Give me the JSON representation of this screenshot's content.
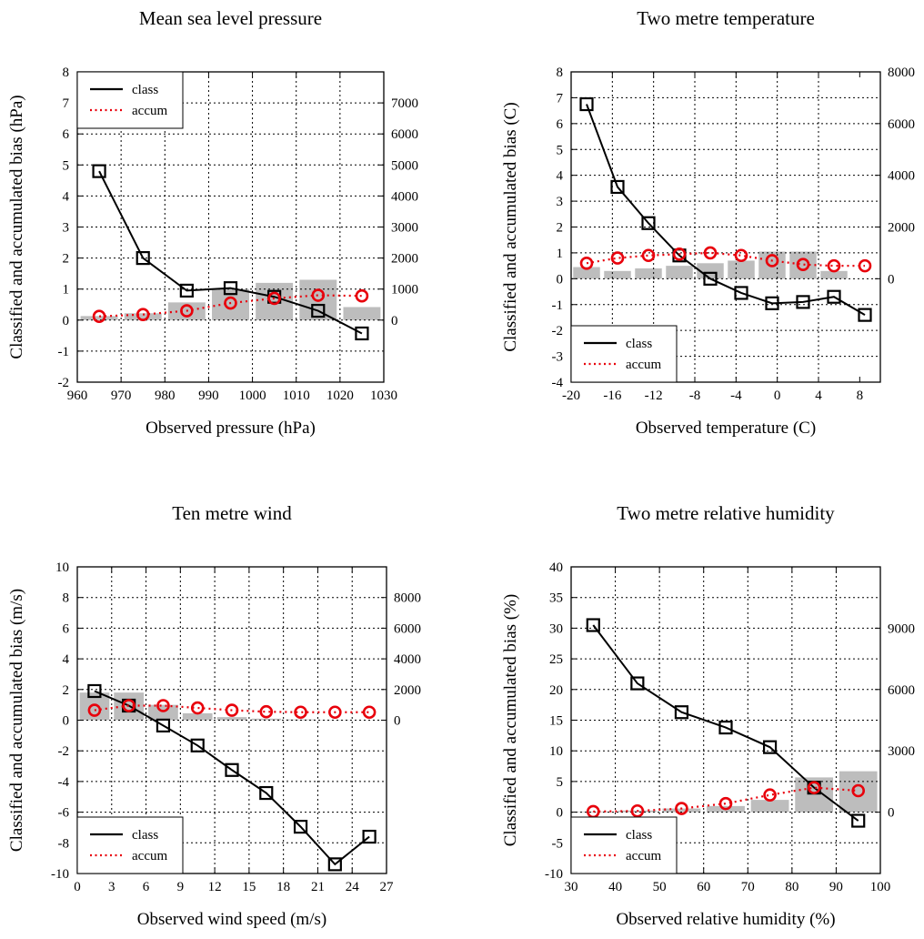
{
  "chart_data": [
    {
      "type": "line",
      "title": "Mean sea level pressure",
      "xlabel": "Observed pressure (hPa)",
      "ylabel": "Classified and accumulated bias (hPa)",
      "xlim": [
        960,
        1030
      ],
      "ylim": [
        -2,
        8
      ],
      "y2lim": [
        -2000,
        8000
      ],
      "xticks": [
        "960",
        "970",
        "980",
        "990",
        "1000",
        "1010",
        "1020",
        "1030"
      ],
      "yticks": [
        "-2",
        "-1",
        "0",
        "1",
        "2",
        "3",
        "4",
        "5",
        "6",
        "7",
        "8"
      ],
      "y2ticks": [
        "0",
        "1000",
        "2000",
        "3000",
        "4000",
        "5000",
        "6000",
        "7000"
      ],
      "legend_position": "top-left",
      "grid": true,
      "x": [
        965,
        975,
        985,
        995,
        1005,
        1015,
        1025
      ],
      "bar_width": 8.5,
      "series": [
        {
          "name": "class",
          "style": "solid",
          "marker": "square",
          "color": "#000000",
          "values": [
            4.8,
            2.0,
            0.95,
            1.03,
            0.75,
            0.3,
            -0.43
          ]
        },
        {
          "name": "accum",
          "style": "dotted",
          "marker": "circle",
          "color": "#e8000b",
          "values": [
            0.12,
            0.18,
            0.3,
            0.55,
            0.7,
            0.8,
            0.78
          ]
        },
        {
          "name": "",
          "type": "bar",
          "axis": "y2",
          "color": "#bdbdbd",
          "values": [
            130,
            220,
            570,
            1000,
            1200,
            1300,
            420
          ]
        }
      ]
    },
    {
      "type": "line",
      "title": "Two metre temperature",
      "xlabel": "Observed temperature (C)",
      "ylabel": "Classified and accumulated bias (C)",
      "xlim": [
        -20,
        10
      ],
      "ylim": [
        -4,
        8
      ],
      "y2lim": [
        -4000,
        8000
      ],
      "xticks": [
        "-20",
        "-16",
        "-12",
        "-8",
        "-4",
        "0",
        "4",
        "8"
      ],
      "yticks": [
        "-4",
        "-3",
        "-2",
        "-1",
        "0",
        "1",
        "2",
        "3",
        "4",
        "5",
        "6",
        "7",
        "8"
      ],
      "y2ticks": [
        "0",
        "2000",
        "4000",
        "6000",
        "8000"
      ],
      "legend_position": "bottom-left",
      "grid": true,
      "x": [
        -18.5,
        -15.5,
        -12.5,
        -9.5,
        -6.5,
        -3.5,
        -0.5,
        2.5,
        5.5,
        8.5
      ],
      "bar_width": 2.6,
      "series": [
        {
          "name": "class",
          "style": "solid",
          "marker": "square",
          "color": "#000000",
          "values": [
            6.75,
            3.55,
            2.15,
            0.9,
            0.0,
            -0.55,
            -0.95,
            -0.9,
            -0.7,
            -1.4
          ]
        },
        {
          "name": "accum",
          "style": "dotted",
          "marker": "circle",
          "color": "#e8000b",
          "values": [
            0.6,
            0.8,
            0.9,
            0.95,
            1.0,
            0.9,
            0.7,
            0.55,
            0.5,
            0.5
          ]
        },
        {
          "name": "",
          "type": "bar",
          "axis": "y2",
          "color": "#bdbdbd",
          "values": [
            450,
            300,
            400,
            500,
            600,
            700,
            1050,
            1050,
            300,
            0
          ]
        }
      ]
    },
    {
      "type": "line",
      "title": "Ten metre wind",
      "xlabel": "Observed wind speed (m/s)",
      "ylabel": "Classified and accumulated bias (m/s)",
      "xlim": [
        0,
        27
      ],
      "ylim": [
        -10,
        10
      ],
      "y2lim": [
        -10000,
        10000
      ],
      "xticks": [
        "0",
        "3",
        "6",
        "9",
        "12",
        "15",
        "18",
        "21",
        "24",
        "27"
      ],
      "yticks": [
        "-10",
        "-8",
        "-6",
        "-4",
        "-2",
        "0",
        "2",
        "4",
        "6",
        "8",
        "10"
      ],
      "y2ticks": [
        "0",
        "2000",
        "4000",
        "6000",
        "8000"
      ],
      "legend_position": "bottom-left",
      "grid": true,
      "x": [
        1.5,
        4.5,
        7.5,
        10.5,
        13.5,
        16.5,
        19.5,
        22.5,
        25.5
      ],
      "bar_width": 2.6,
      "series": [
        {
          "name": "class",
          "style": "solid",
          "marker": "square",
          "color": "#000000",
          "values": [
            1.9,
            0.95,
            -0.35,
            -1.65,
            -3.25,
            -4.75,
            -6.95,
            -9.4,
            -7.6
          ]
        },
        {
          "name": "accum",
          "style": "dotted",
          "marker": "circle",
          "color": "#e8000b",
          "values": [
            0.65,
            0.95,
            0.95,
            0.8,
            0.65,
            0.55,
            0.52,
            0.52,
            0.52
          ]
        },
        {
          "name": "",
          "type": "bar",
          "axis": "y2",
          "color": "#bdbdbd",
          "values": [
            1800,
            1800,
            1000,
            450,
            200,
            100,
            50,
            20,
            10
          ]
        }
      ]
    },
    {
      "type": "line",
      "title": "Two  metre  relative  humidity",
      "xlabel": "Observed relative humidity (%)",
      "ylabel": "Classified and accumulated bias (%)",
      "xlim": [
        30,
        100
      ],
      "ylim": [
        -10,
        40
      ],
      "y2lim": [
        -3000,
        12000
      ],
      "xticks": [
        "30",
        "40",
        "50",
        "60",
        "70",
        "80",
        "90",
        "100"
      ],
      "yticks": [
        "-10",
        "-5",
        "0",
        "5",
        "10",
        "15",
        "20",
        "25",
        "30",
        "35",
        "40"
      ],
      "y2ticks": [
        "0",
        "3000",
        "6000",
        "9000"
      ],
      "legend_position": "bottom-left",
      "grid": true,
      "x": [
        35,
        45,
        55,
        65,
        75,
        85,
        95
      ],
      "bar_width": 8.6,
      "series": [
        {
          "name": "class",
          "style": "solid",
          "marker": "square",
          "color": "#000000",
          "values": [
            30.5,
            21.0,
            16.3,
            13.8,
            10.6,
            4.0,
            -1.4
          ]
        },
        {
          "name": "accum",
          "style": "dotted",
          "marker": "circle",
          "color": "#e8000b",
          "values": [
            0.1,
            0.2,
            0.6,
            1.4,
            2.8,
            4.0,
            3.5
          ]
        },
        {
          "name": "",
          "type": "bar",
          "axis": "y2",
          "color": "#bdbdbd",
          "values": [
            30,
            80,
            180,
            300,
            600,
            1700,
            2000
          ]
        }
      ]
    }
  ]
}
